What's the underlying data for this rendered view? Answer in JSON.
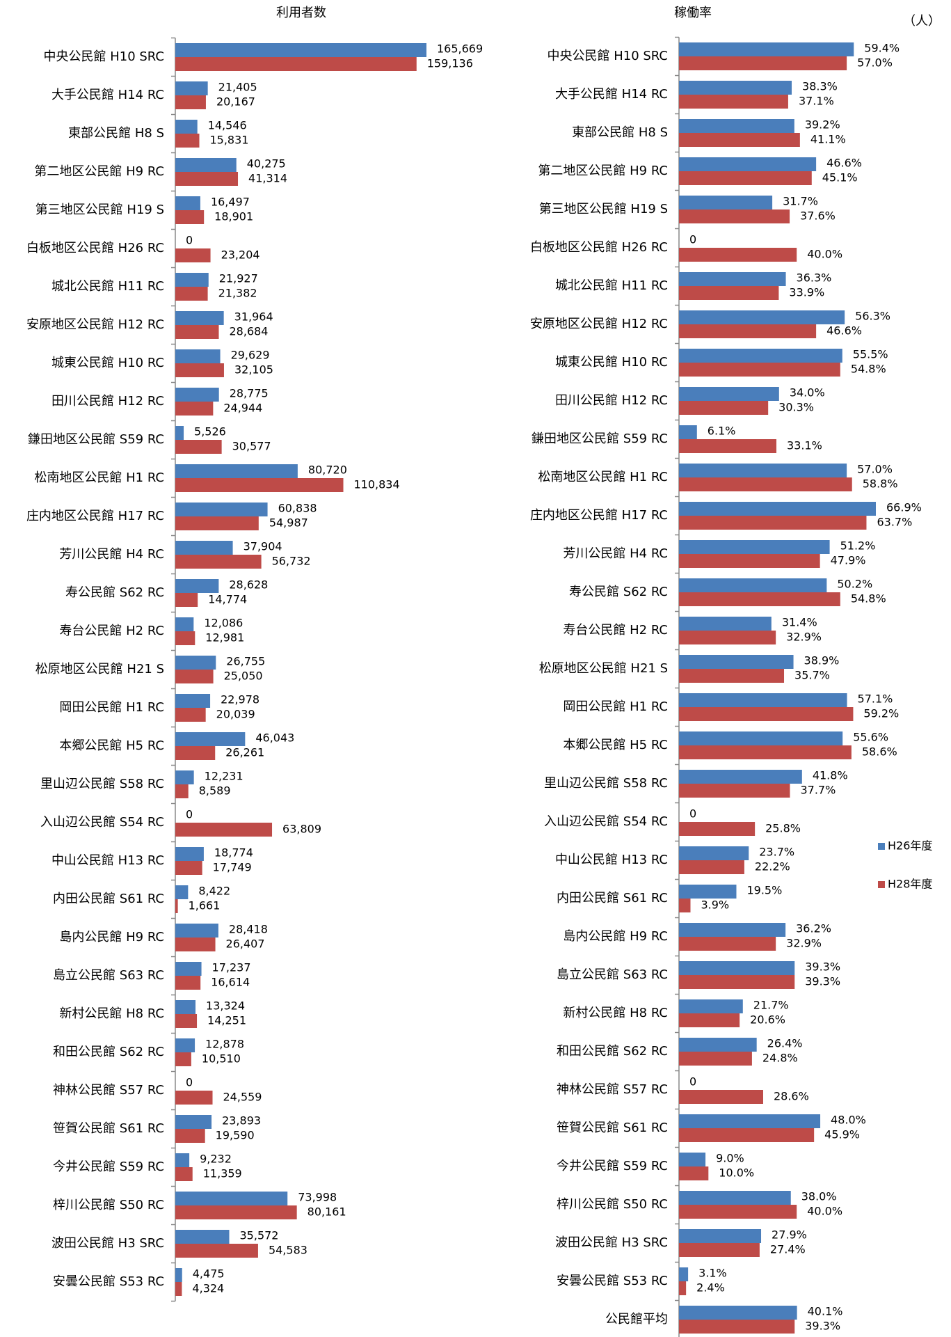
{
  "unit_label": "（人）",
  "chart_data": [
    {
      "type": "barh",
      "title": "利用者数",
      "categories": [
        "中央公民館 H10 SRC",
        "大手公民館 H14 RC",
        "東部公民館 H8 S",
        "第二地区公民館 H9 RC",
        "第三地区公民館 H19 S",
        "白板地区公民館 H26 RC",
        "城北公民館 H11 RC",
        "安原地区公民館 H12 RC",
        "城東公民館 H10 RC",
        "田川公民館 H12 RC",
        "鎌田地区公民館 S59 RC",
        "松南地区公民館 H1 RC",
        "庄内地区公民館 H17 RC",
        "芳川公民館 H4 RC",
        "寿公民館 S62 RC",
        "寿台公民館 H2 RC",
        "松原地区公民館 H21 S",
        "岡田公民館 H1 RC",
        "本郷公民館 H5 RC",
        "里山辺公民館 S58 RC",
        "入山辺公民館 S54 RC",
        "中山公民館 H13 RC",
        "内田公民館 S61 RC",
        "島内公民館 H9 RC",
        "島立公民館 S63 RC",
        "新村公民館 H8 RC",
        "和田公民館 S62 RC",
        "神林公民館 S57 RC",
        "笹賀公民館 S61 RC",
        "今井公民館 S59 RC",
        "梓川公民館 S50 RC",
        "波田公民館 H3 SRC",
        "安曇公民館 S53 RC"
      ],
      "series": [
        {
          "color": "#4a7ebb",
          "values": [
            165669,
            21405,
            14546,
            40275,
            16497,
            0,
            21927,
            31964,
            29629,
            28775,
            5526,
            80720,
            60838,
            37904,
            28628,
            12086,
            26755,
            22978,
            46043,
            12231,
            0,
            18774,
            8422,
            28418,
            17237,
            13324,
            12878,
            0,
            23893,
            9232,
            73998,
            35572,
            4475
          ],
          "value_labels": [
            "165,669",
            "21,405",
            "14,546",
            "40,275",
            "16,497",
            "0",
            "21,927",
            "31,964",
            "29,629",
            "28,775",
            "5,526",
            "80,720",
            "60,838",
            "37,904",
            "28,628",
            "12,086",
            "26,755",
            "22,978",
            "46,043",
            "12,231",
            "0",
            "18,774",
            "8,422",
            "28,418",
            "17,237",
            "13,324",
            "12,878",
            "0",
            "23,893",
            "9,232",
            "73,998",
            "35,572",
            "4,475"
          ]
        },
        {
          "color": "#be4b48",
          "values": [
            159136,
            20167,
            15831,
            41314,
            18901,
            23204,
            21382,
            28684,
            32105,
            24944,
            30577,
            110834,
            54987,
            56732,
            14774,
            12981,
            25050,
            20039,
            26261,
            8589,
            63809,
            17749,
            1661,
            26407,
            16614,
            14251,
            10510,
            24559,
            19590,
            11359,
            80161,
            54583,
            4324
          ],
          "value_labels": [
            "159,136",
            "20,167",
            "15,831",
            "41,314",
            "18,901",
            "23,204",
            "21,382",
            "28,684",
            "32,105",
            "24,944",
            "30,577",
            "110,834",
            "54,987",
            "56,732",
            "14,774",
            "12,981",
            "25,050",
            "20,039",
            "26,261",
            "8,589",
            "63,809",
            "17,749",
            "1,661",
            "26,407",
            "16,614",
            "14,251",
            "10,510",
            "24,559",
            "19,590",
            "11,359",
            "80,161",
            "54,583",
            "4,324"
          ]
        }
      ]
    },
    {
      "type": "barh",
      "title": "稼働率",
      "legend": "right",
      "categories": [
        "中央公民館 H10 SRC",
        "大手公民館 H14 RC",
        "東部公民館 H8 S",
        "第二地区公民館 H9 RC",
        "第三地区公民館 H19 S",
        "白板地区公民館 H26 RC",
        "城北公民館 H11 RC",
        "安原地区公民館 H12 RC",
        "城東公民館 H10 RC",
        "田川公民館 H12 RC",
        "鎌田地区公民館 S59 RC",
        "松南地区公民館 H1 RC",
        "庄内地区公民館 H17 RC",
        "芳川公民館 H4 RC",
        "寿公民館 S62 RC",
        "寿台公民館 H2 RC",
        "松原地区公民館 H21 S",
        "岡田公民館 H1 RC",
        "本郷公民館 H5 RC",
        "里山辺公民館 S58 RC",
        "入山辺公民館 S54 RC",
        "中山公民館 H13 RC",
        "内田公民館 S61 RC",
        "島内公民館 H9 RC",
        "島立公民館 S63 RC",
        "新村公民館 H8 RC",
        "和田公民館 S62 RC",
        "神林公民館 S57 RC",
        "笹賀公民館 S61 RC",
        "今井公民館 S59 RC",
        "梓川公民館 S50 RC",
        "波田公民館 H3 SRC",
        "安曇公民館 S53 RC",
        "公民館平均"
      ],
      "series": [
        {
          "name": "H26年度",
          "color": "#4a7ebb",
          "values": [
            59.4,
            38.3,
            39.2,
            46.6,
            31.7,
            0,
            36.3,
            56.3,
            55.5,
            34.0,
            6.1,
            57.0,
            66.9,
            51.2,
            50.2,
            31.4,
            38.9,
            57.1,
            55.6,
            41.8,
            0,
            23.7,
            19.5,
            36.2,
            39.3,
            21.7,
            26.4,
            0,
            48.0,
            9.0,
            38.0,
            27.9,
            3.1,
            40.1
          ],
          "value_labels": [
            "59.4%",
            "38.3%",
            "39.2%",
            "46.6%",
            "31.7%",
            "0",
            "36.3%",
            "56.3%",
            "55.5%",
            "34.0%",
            "6.1%",
            "57.0%",
            "66.9%",
            "51.2%",
            "50.2%",
            "31.4%",
            "38.9%",
            "57.1%",
            "55.6%",
            "41.8%",
            "0",
            "23.7%",
            "19.5%",
            "36.2%",
            "39.3%",
            "21.7%",
            "26.4%",
            "0",
            "48.0%",
            "9.0%",
            "38.0%",
            "27.9%",
            "3.1%",
            "40.1%"
          ]
        },
        {
          "name": "H28年度",
          "color": "#be4b48",
          "values": [
            57.0,
            37.1,
            41.1,
            45.1,
            37.6,
            40.0,
            33.9,
            46.6,
            54.8,
            30.3,
            33.1,
            58.8,
            63.7,
            47.9,
            54.8,
            32.9,
            35.7,
            59.2,
            58.6,
            37.7,
            25.8,
            22.2,
            3.9,
            32.9,
            39.3,
            20.6,
            24.8,
            28.6,
            45.9,
            10.0,
            40.0,
            27.4,
            2.4,
            39.3
          ],
          "value_labels": [
            "57.0%",
            "37.1%",
            "41.1%",
            "45.1%",
            "37.6%",
            "40.0%",
            "33.9%",
            "46.6%",
            "54.8%",
            "30.3%",
            "33.1%",
            "58.8%",
            "63.7%",
            "47.9%",
            "54.8%",
            "32.9%",
            "35.7%",
            "59.2%",
            "58.6%",
            "37.7%",
            "25.8%",
            "22.2%",
            "3.9%",
            "32.9%",
            "39.3%",
            "20.6%",
            "24.8%",
            "28.6%",
            "45.9%",
            "10.0%",
            "40.0%",
            "27.4%",
            "2.4%",
            "39.3%"
          ]
        }
      ]
    }
  ]
}
